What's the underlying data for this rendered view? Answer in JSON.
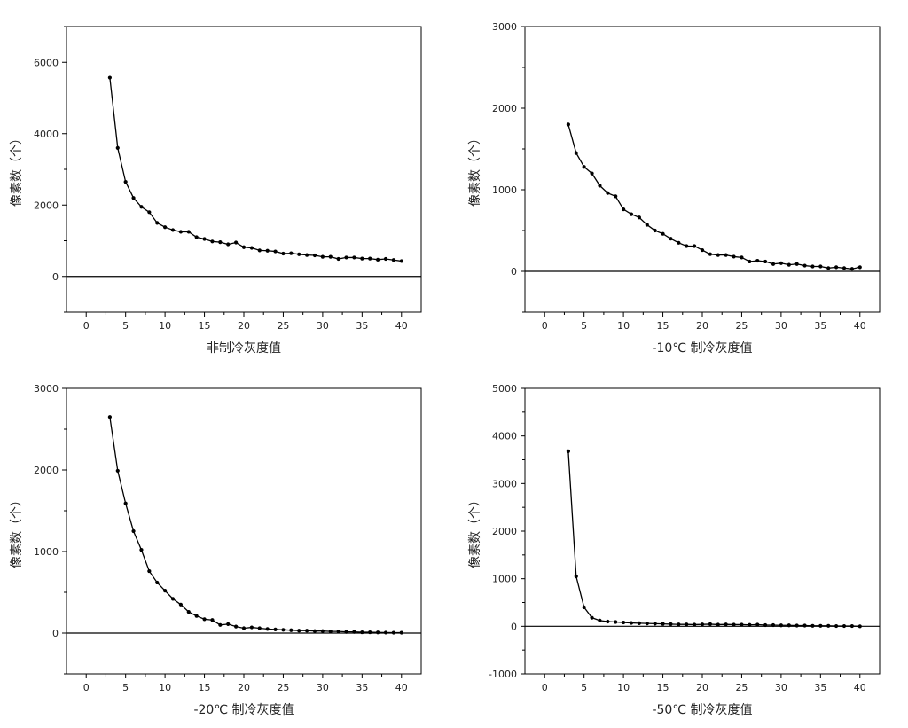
{
  "chart_data": [
    {
      "type": "line",
      "xlabel": "非制冷灰度值",
      "ylabel": "像素数（个）",
      "xlim": [
        -2.5,
        42.5
      ],
      "ylim": [
        -1000,
        7000
      ],
      "xticks": [
        0,
        5,
        10,
        15,
        20,
        25,
        30,
        35,
        40
      ],
      "yticks": [
        0,
        2000,
        4000,
        6000
      ],
      "grid": false,
      "zero_line": true,
      "series": [
        {
          "x": [
            3,
            4,
            5,
            6,
            7,
            8,
            9,
            10,
            11,
            12,
            13,
            14,
            15,
            16,
            17,
            18,
            19,
            20,
            21,
            22,
            23,
            24,
            25,
            26,
            27,
            28,
            29,
            30,
            31,
            32,
            33,
            34,
            35,
            36,
            37,
            38,
            39,
            40
          ],
          "values": [
            5570,
            3600,
            2650,
            2200,
            1950,
            1800,
            1500,
            1380,
            1300,
            1250,
            1250,
            1100,
            1050,
            980,
            960,
            900,
            950,
            820,
            800,
            730,
            720,
            700,
            640,
            650,
            620,
            600,
            590,
            550,
            550,
            490,
            530,
            530,
            500,
            500,
            470,
            490,
            460,
            430
          ]
        }
      ]
    },
    {
      "type": "line",
      "xlabel": "-10℃ 制冷灰度值",
      "ylabel": "像素数（个）",
      "xlim": [
        -2.5,
        42.5
      ],
      "ylim": [
        -500,
        3000
      ],
      "xticks": [
        0,
        5,
        10,
        15,
        20,
        25,
        30,
        35,
        40
      ],
      "yticks": [
        0,
        1000,
        2000,
        3000
      ],
      "grid": false,
      "zero_line": true,
      "series": [
        {
          "x": [
            3,
            4,
            5,
            6,
            7,
            8,
            9,
            10,
            11,
            12,
            13,
            14,
            15,
            16,
            17,
            18,
            19,
            20,
            21,
            22,
            23,
            24,
            25,
            26,
            27,
            28,
            29,
            30,
            31,
            32,
            33,
            34,
            35,
            36,
            37,
            38,
            39,
            40
          ],
          "values": [
            1800,
            1450,
            1280,
            1200,
            1050,
            960,
            920,
            760,
            700,
            660,
            570,
            500,
            460,
            400,
            350,
            310,
            310,
            260,
            210,
            200,
            200,
            180,
            170,
            120,
            130,
            120,
            90,
            100,
            80,
            90,
            70,
            60,
            60,
            40,
            50,
            40,
            30,
            50
          ]
        }
      ]
    },
    {
      "type": "line",
      "xlabel": "-20℃ 制冷灰度值",
      "ylabel": "像素数（个）",
      "xlim": [
        -2.5,
        42.5
      ],
      "ylim": [
        -500,
        3000
      ],
      "xticks": [
        0,
        5,
        10,
        15,
        20,
        25,
        30,
        35,
        40
      ],
      "yticks": [
        0,
        1000,
        2000,
        3000
      ],
      "grid": false,
      "zero_line": true,
      "series": [
        {
          "x": [
            3,
            4,
            5,
            6,
            7,
            8,
            9,
            10,
            11,
            12,
            13,
            14,
            15,
            16,
            17,
            18,
            19,
            20,
            21,
            22,
            23,
            24,
            25,
            26,
            27,
            28,
            29,
            30,
            31,
            32,
            33,
            34,
            35,
            36,
            37,
            38,
            39,
            40
          ],
          "values": [
            2650,
            1990,
            1590,
            1250,
            1020,
            760,
            620,
            520,
            420,
            350,
            260,
            210,
            170,
            160,
            100,
            110,
            80,
            60,
            70,
            60,
            50,
            45,
            40,
            35,
            30,
            30,
            25,
            25,
            20,
            20,
            15,
            15,
            10,
            10,
            8,
            6,
            5,
            5
          ]
        }
      ]
    },
    {
      "type": "line",
      "xlabel": "-50℃ 制冷灰度值",
      "ylabel": "像素数（个）",
      "xlim": [
        -2.5,
        42.5
      ],
      "ylim": [
        -1000,
        5000
      ],
      "xticks": [
        0,
        5,
        10,
        15,
        20,
        25,
        30,
        35,
        40
      ],
      "yticks": [
        -1000,
        0,
        1000,
        2000,
        3000,
        4000,
        5000
      ],
      "grid": false,
      "zero_line": true,
      "series": [
        {
          "x": [
            3,
            4,
            5,
            6,
            7,
            8,
            9,
            10,
            11,
            12,
            13,
            14,
            15,
            16,
            17,
            18,
            19,
            20,
            21,
            22,
            23,
            24,
            25,
            26,
            27,
            28,
            29,
            30,
            31,
            32,
            33,
            34,
            35,
            36,
            37,
            38,
            39,
            40
          ],
          "values": [
            3680,
            1050,
            400,
            180,
            120,
            100,
            90,
            80,
            70,
            65,
            60,
            55,
            50,
            45,
            40,
            40,
            35,
            40,
            45,
            35,
            40,
            35,
            35,
            30,
            35,
            25,
            25,
            20,
            20,
            15,
            15,
            10,
            10,
            10,
            5,
            5,
            5,
            0
          ]
        }
      ]
    }
  ]
}
